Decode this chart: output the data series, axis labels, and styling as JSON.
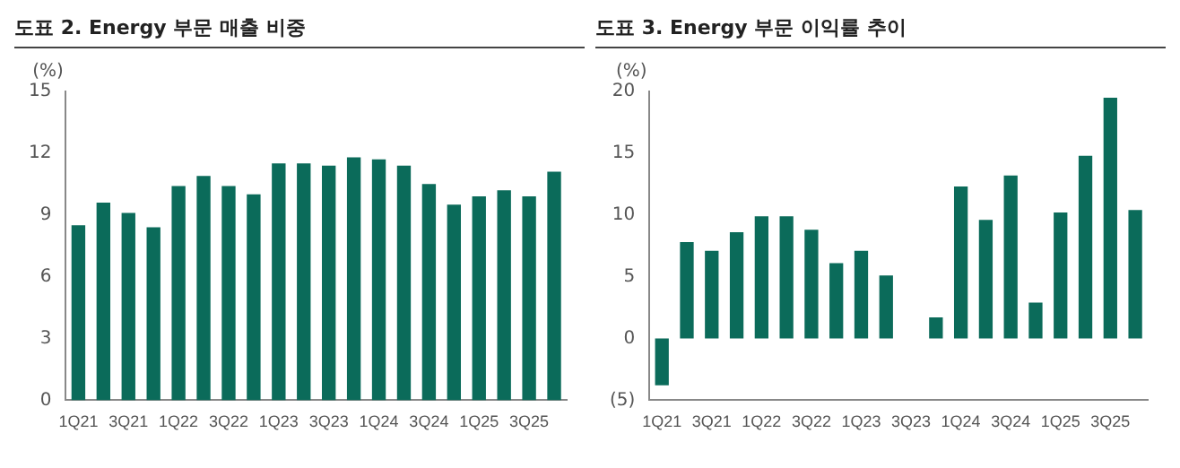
{
  "chart_data": [
    {
      "type": "bar",
      "title": "도표 2. Energy 부문 매출 비중",
      "ylabel": "(%)",
      "categories": [
        "1Q21",
        null,
        "3Q21",
        null,
        "1Q22",
        null,
        "3Q22",
        null,
        "1Q23",
        null,
        "3Q23",
        null,
        "1Q24",
        null,
        "3Q24",
        null,
        "1Q25",
        null,
        "3Q25",
        null
      ],
      "values": [
        8.5,
        9.6,
        9.1,
        8.4,
        10.4,
        10.9,
        10.4,
        10.0,
        11.5,
        11.5,
        11.4,
        11.8,
        11.7,
        11.4,
        10.5,
        9.5,
        9.9,
        10.2,
        9.9,
        11.1
      ],
      "color": "#0b6b5a",
      "ylim": [
        0,
        15
      ],
      "yticks": [
        0,
        3,
        6,
        9,
        12,
        15
      ],
      "grid": false,
      "legend": false
    },
    {
      "type": "bar",
      "title": "도표 3. Energy 부문 이익률 추이",
      "ylabel": "(%)",
      "categories": [
        "1Q21",
        null,
        "3Q21",
        null,
        "1Q22",
        null,
        "3Q22",
        null,
        "1Q23",
        null,
        "3Q23",
        null,
        "1Q24",
        null,
        "3Q24",
        null,
        "1Q25",
        null,
        "3Q25",
        null
      ],
      "values": [
        -3.8,
        7.8,
        7.1,
        8.6,
        9.9,
        9.9,
        8.8,
        6.1,
        7.1,
        5.1,
        0,
        1.7,
        12.3,
        9.6,
        13.2,
        2.9,
        10.2,
        14.8,
        19.5,
        10.4
      ],
      "color": "#0b6b5a",
      "ylim": [
        -5,
        20
      ],
      "yticks": [
        {
          "value": -5,
          "label": "(5)"
        },
        0,
        5,
        10,
        15,
        20
      ],
      "grid": false,
      "legend": false
    }
  ]
}
